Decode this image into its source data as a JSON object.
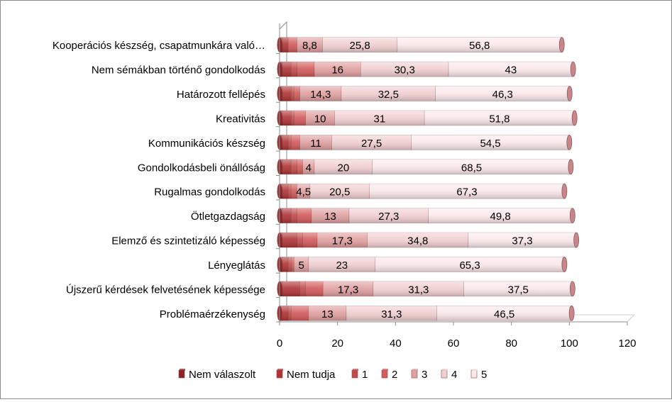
{
  "colors": {
    "Nem válaszolt": "#8b2426",
    "Nem tudja": "#b03335",
    "1": "#c24a49",
    "2": "#d35a5a",
    "3": "#e0a0a0",
    "4": "#f1cfd0",
    "5": "#fbe8ea",
    "axis": "#8c8c8c"
  },
  "chart_data": {
    "type": "bar",
    "orientation": "horizontal",
    "stacked": true,
    "style": "3d-cylinder",
    "title": "",
    "xlabel": "",
    "ylabel": "",
    "xlim": [
      0,
      120
    ],
    "x_ticks": [
      0,
      20,
      40,
      60,
      80,
      100,
      120
    ],
    "grid": false,
    "legend_position": "bottom",
    "categories": [
      "Kooperációs készség, csapatmunkára való…",
      "Nem sémákban történő gondolkodás",
      "Határozott fellépés",
      "Kreativitás",
      "Kommunikációs készség",
      "Gondolkodásbeli önállóság",
      "Rugalmas gondolkodás",
      "Ötletgazdagság",
      "Elemző és szintetizáló képesség",
      "Lényeglátás",
      "Újszerű kérdések felvetésének képessége",
      "Problémaérzékenység"
    ],
    "series": [
      {
        "name": "Nem válaszolt",
        "values": [
          1,
          1,
          1,
          1,
          1,
          1,
          1,
          1,
          1,
          1,
          1,
          0
        ]
      },
      {
        "name": "Nem tudja",
        "values": [
          2,
          3,
          3,
          3,
          2,
          3,
          2,
          3,
          5,
          2,
          6,
          3
        ]
      },
      {
        "name": "1",
        "values": [
          0,
          2,
          1,
          1,
          1,
          2,
          1,
          2,
          2,
          1,
          2,
          1
        ]
      },
      {
        "name": "2",
        "values": [
          3,
          6,
          2,
          4,
          3,
          2,
          2,
          5,
          5,
          1,
          6,
          6
        ]
      },
      {
        "name": "3",
        "values": [
          8.8,
          16,
          14.3,
          10,
          11,
          4,
          4.5,
          13,
          17.3,
          5,
          17.3,
          13
        ]
      },
      {
        "name": "4",
        "values": [
          25.8,
          30.3,
          32.5,
          31,
          27.5,
          20,
          20.5,
          27.3,
          34.8,
          23,
          31.3,
          31.3
        ]
      },
      {
        "name": "5",
        "values": [
          56.8,
          43,
          46.3,
          51.8,
          54.5,
          68.5,
          67.3,
          49.8,
          37.3,
          65.3,
          37.5,
          46.5
        ]
      }
    ],
    "data_labels": {
      "3": [
        "8,8",
        "16",
        "14,3",
        "10",
        "11",
        "4",
        "4,5",
        "13",
        "17,3",
        "5",
        "17,3",
        "13"
      ],
      "4": [
        "25,8",
        "30,3",
        "32,5",
        "31",
        "27,5",
        "20",
        "20,5",
        "27,3",
        "34,8",
        "23",
        "31,3",
        "31,3"
      ],
      "5": [
        "56,8",
        "43",
        "46,3",
        "51,8",
        "54,5",
        "68,5",
        "67,3",
        "49,8",
        "37,3",
        "65,3",
        "37,5",
        "46,5"
      ]
    }
  }
}
